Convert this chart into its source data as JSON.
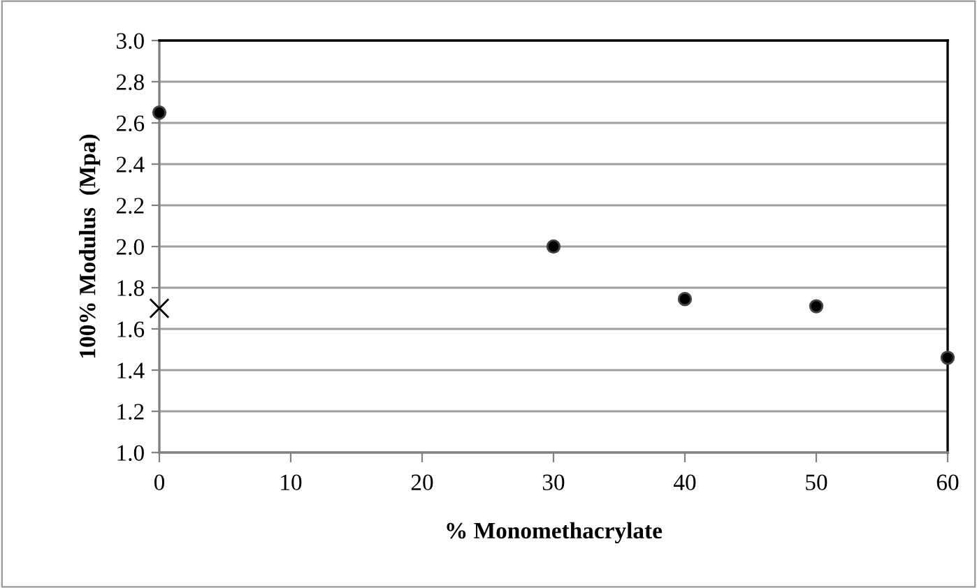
{
  "chart_data": {
    "type": "scatter",
    "xlabel": "% Monomethacrylate",
    "ylabel": "100% Modulus  (Mpa)",
    "xlim": [
      0,
      60
    ],
    "xticks": [
      0,
      10,
      20,
      30,
      40,
      50,
      60
    ],
    "ylim": [
      1.0,
      3.0
    ],
    "yticks": [
      {
        "value": 1.0,
        "label": "1.0"
      },
      {
        "value": 1.2,
        "label": "1.2"
      },
      {
        "value": 1.4,
        "label": "1.4"
      },
      {
        "value": 1.6,
        "label": "1.6"
      },
      {
        "value": 1.8,
        "label": "1.8"
      },
      {
        "value": 2.0,
        "label": "2.0"
      },
      {
        "value": 2.2,
        "label": "2.2"
      },
      {
        "value": 2.4,
        "label": "2.4"
      },
      {
        "value": 2.6,
        "label": "2.6"
      },
      {
        "value": 2.8,
        "label": "2.8"
      },
      {
        "value": 3.0,
        "label": "3.0"
      }
    ],
    "grid": "y",
    "series": [
      {
        "color": "#000000",
        "marker": "circle",
        "x": [
          0,
          30,
          40,
          50,
          60
        ],
        "values": [
          2.65,
          2.0,
          1.745,
          1.71,
          1.46
        ]
      },
      {
        "color": "#000000",
        "marker": "cross",
        "x": [
          0
        ],
        "values": [
          1.7
        ]
      }
    ]
  }
}
